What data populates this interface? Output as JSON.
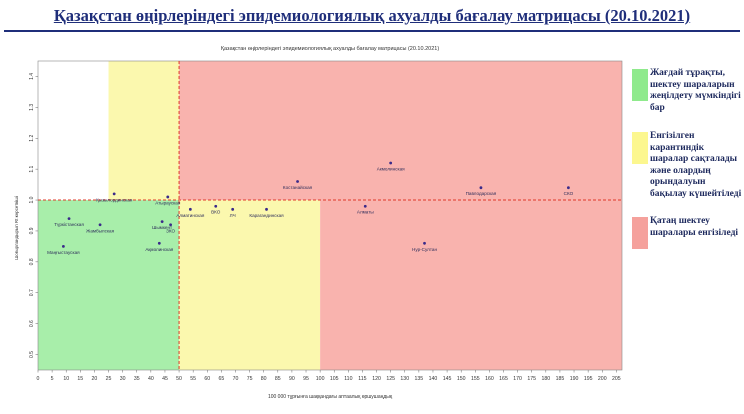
{
  "page_title": "Қазақстан өңірлеріндегі эпидемиологиялық ахуалды бағалау матрицасы  (20.10.2021)",
  "colors": {
    "title": "#1f2e7a",
    "green_zone": "#a8eeaa",
    "yellow_zone": "#fbf8ae",
    "red_zone": "#f9b3ae",
    "threshold_line": "#e03a2a",
    "point": "#3a2a8a",
    "label": "#2d2d5a"
  },
  "legend": [
    {
      "name": "green",
      "color": "#8fea8c",
      "text": "Жағдай тұрақты, шектеу шараларын жеңілдету мүмкіндігі бар"
    },
    {
      "name": "yellow",
      "color": "#fcf78f",
      "text": "Енгізілген карантиндік шаралар сақталады және олардың орындалуын бақылау күшейтіледі"
    },
    {
      "name": "red",
      "color": "#f5a19c",
      "text": "Қатаң шектеу шаралары енгізіледі"
    }
  ],
  "chart_data": {
    "type": "scatter",
    "title": "Қазақстан өңірлеріндегі эпидемиологиялық ахуалды бағалау матрицасы  (20.10.2021)",
    "xlabel": "100 000 тұрғынға шаққандағы аптаалық өршушаңдық",
    "ylabel": "Шоғырландырып Rt көрсеткіші",
    "xlim": [
      0,
      207
    ],
    "ylim": [
      0.45,
      1.45
    ],
    "x_ticks": [
      0,
      5,
      10,
      15,
      20,
      25,
      30,
      35,
      40,
      45,
      50,
      55,
      60,
      65,
      70,
      75,
      80,
      85,
      90,
      95,
      100,
      105,
      110,
      115,
      120,
      125,
      130,
      135,
      140,
      145,
      150,
      155,
      160,
      165,
      170,
      175,
      180,
      185,
      190,
      195,
      200,
      205
    ],
    "y_ticks": [
      0.5,
      0.6,
      0.7,
      0.8,
      0.9,
      1.0,
      1.1,
      1.2,
      1.3,
      1.4
    ],
    "zones": [
      {
        "name": "green",
        "x": [
          0,
          50
        ],
        "y": [
          0.45,
          1.0
        ]
      },
      {
        "name": "yellow",
        "x": [
          25,
          50
        ],
        "y": [
          1.0,
          1.45
        ]
      },
      {
        "name": "yellow",
        "x": [
          50,
          100
        ],
        "y": [
          0.45,
          1.0
        ]
      },
      {
        "name": "red",
        "x": [
          50,
          207
        ],
        "y": [
          1.0,
          1.45
        ]
      },
      {
        "name": "red",
        "x": [
          100,
          207
        ],
        "y": [
          0.45,
          1.0
        ]
      }
    ],
    "thresholds": {
      "x": 50,
      "y": 1.0
    },
    "points": [
      {
        "label": "Маңғыстауская",
        "x": 9,
        "y": 0.85
      },
      {
        "label": "Түркістанская",
        "x": 11,
        "y": 0.94
      },
      {
        "label": "Жамбылская",
        "x": 22,
        "y": 0.92
      },
      {
        "label": "Қызылординская",
        "x": 27,
        "y": 1.02
      },
      {
        "label": "Ақмолинская",
        "x": 43,
        "y": 0.86
      },
      {
        "label": "Шымкент",
        "x": 44,
        "y": 0.93
      },
      {
        "label": "ЗКО",
        "x": 47,
        "y": 0.92
      },
      {
        "label": "Атырауская",
        "x": 46,
        "y": 1.01
      },
      {
        "label": "Алматинская",
        "x": 54,
        "y": 0.97
      },
      {
        "label": "ВКО",
        "x": 63,
        "y": 0.98
      },
      {
        "label": "ЛЧ",
        "x": 69,
        "y": 0.97
      },
      {
        "label": "Карагандинская",
        "x": 81,
        "y": 0.97
      },
      {
        "label": "Костанайская",
        "x": 92,
        "y": 1.06
      },
      {
        "label": "Алматы",
        "x": 116,
        "y": 0.98
      },
      {
        "label": "Акмолинская",
        "x": 125,
        "y": 1.12
      },
      {
        "label": "Нур-Султан",
        "x": 137,
        "y": 0.86
      },
      {
        "label": "Павлодарская",
        "x": 157,
        "y": 1.04
      },
      {
        "label": "СКО",
        "x": 188,
        "y": 1.04
      }
    ]
  }
}
